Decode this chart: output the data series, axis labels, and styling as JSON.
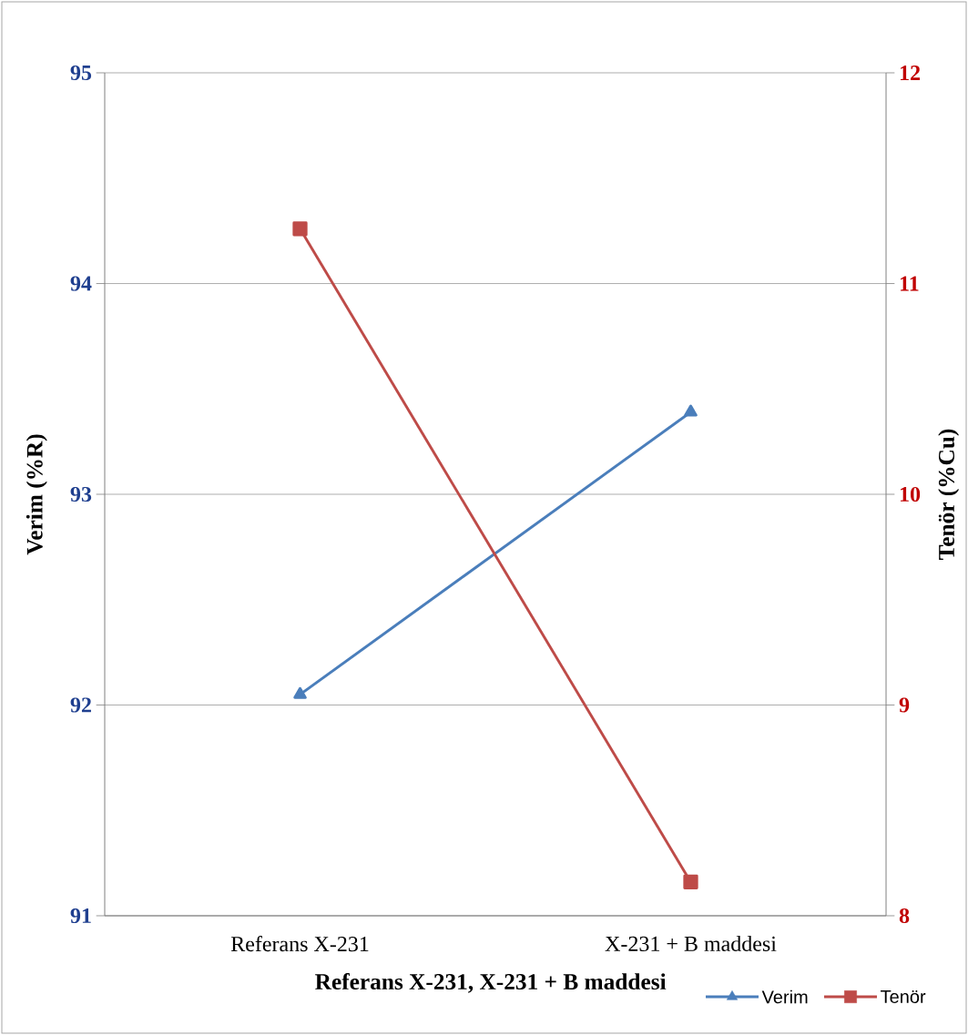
{
  "chart_data": {
    "type": "line",
    "xlabel": "Referans X-231, X-231 + B maddesi",
    "ylabel": "Verim (%R)",
    "y2label": "Tenör (%Cu)",
    "categories": [
      "Referans X-231",
      "X-231 + B maddesi"
    ],
    "series": [
      {
        "name": "Verim",
        "color": "#4a7ebb",
        "values": [
          92.05,
          93.39
        ],
        "marker": "triangle"
      },
      {
        "name": "Tenör",
        "color": "#be4b48",
        "values": [
          11.26,
          8.16
        ],
        "marker": "square",
        "axis": "y2"
      }
    ],
    "ylim": [
      91,
      95
    ],
    "yticks": [
      91,
      92,
      93,
      94,
      95
    ],
    "y2lim": [
      8,
      12
    ],
    "y2ticks": [
      8,
      9,
      10,
      11,
      12
    ],
    "grid": "y",
    "legend": "bottom right",
    "line_style": "solid"
  }
}
